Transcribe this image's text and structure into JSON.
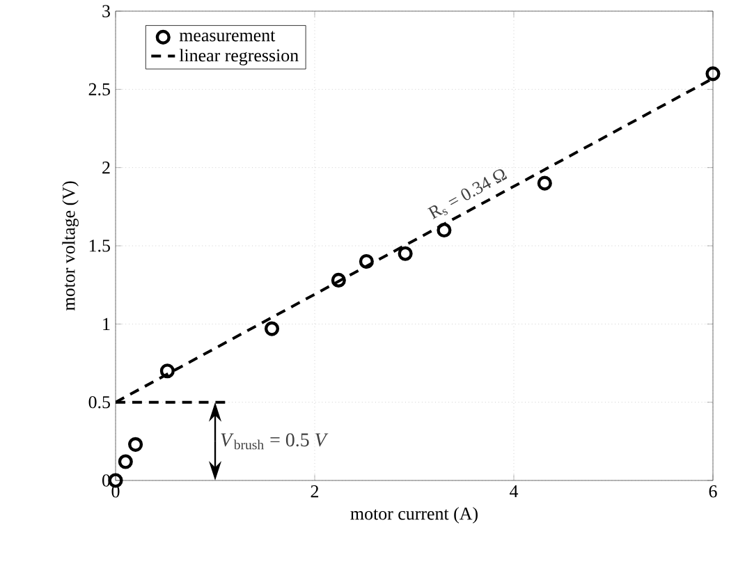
{
  "chart_data": {
    "type": "scatter",
    "xlabel": "motor current (A)",
    "ylabel": "motor voltage (V)",
    "xlim": [
      0,
      6
    ],
    "ylim": [
      0,
      3
    ],
    "xticks": [
      0,
      2,
      4,
      6
    ],
    "yticks": [
      0,
      0.5,
      1,
      1.5,
      2,
      2.5,
      3
    ],
    "grid": true,
    "legend": "top left",
    "series": [
      {
        "name": "measurement",
        "marker": "circle",
        "color": "#000000",
        "x": [
          0,
          0.1,
          0.2,
          0.52,
          1.57,
          2.24,
          2.52,
          2.91,
          3.3,
          4.31,
          6
        ],
        "values": [
          0,
          0.12,
          0.23,
          0.7,
          0.97,
          1.28,
          1.4,
          1.45,
          1.6,
          1.9,
          2.6
        ]
      },
      {
        "name": "linear regression",
        "type": "line",
        "line_style": "dashed",
        "color": "#000000",
        "x": [
          0,
          6
        ],
        "values": [
          0.5,
          2.57
        ]
      },
      {
        "type": "line",
        "line_style": "dashed",
        "color": "#000000",
        "x": [
          0,
          1.1
        ],
        "values": [
          0.5,
          0.5
        ]
      }
    ],
    "annotations": [
      {
        "text": "R$_{s}$ = 0.34 Ω",
        "x": 3.6,
        "y": 1.76
      },
      {
        "text": "*V*$_{brush}$ = 0.5 *V*",
        "x": 1,
        "y": 0.5
      }
    ]
  }
}
